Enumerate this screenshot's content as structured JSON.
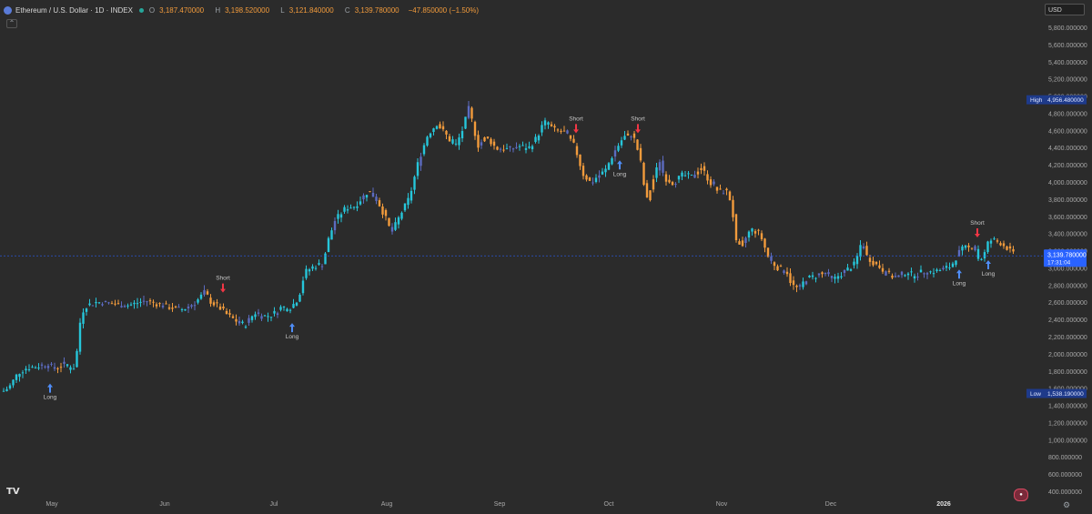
{
  "header": {
    "title": "Ethereum / U.S. Dollar · 1D · INDEX",
    "ohlc": [
      {
        "key": "O",
        "value": "3,187.470000"
      },
      {
        "key": "H",
        "value": "3,198.520000"
      },
      {
        "key": "L",
        "value": "3,121.840000"
      },
      {
        "key": "C",
        "value": "3,139.780000"
      }
    ],
    "change": "−47.850000 (−1.50%)"
  },
  "toolbar": {
    "currency": "USD",
    "collapse_icon": "chevron-up-icon",
    "settings_icon": "gear-icon",
    "logo": "TV"
  },
  "price_axis": {
    "ticks": [
      "5,800.000000",
      "5,600.000000",
      "5,400.000000",
      "5,200.000000",
      "5,000.000000",
      "4,800.000000",
      "4,600.000000",
      "4,400.000000",
      "4,200.000000",
      "4,000.000000",
      "3,800.000000",
      "3,600.000000",
      "3,400.000000",
      "3,200.000000",
      "3,000.000000",
      "2,800.000000",
      "2,600.000000",
      "2,400.000000",
      "2,200.000000",
      "2,000.000000",
      "1,800.000000",
      "1,600.000000",
      "1,400.000000",
      "1,200.000000",
      "1,000.000000",
      "800.000000",
      "600.000000",
      "400.000000"
    ],
    "high_label": "High",
    "high_value": "4,956.480000",
    "low_label": "Low",
    "low_value": "1,538.190000",
    "last_price": "3,139.780000",
    "countdown": "17:31:04"
  },
  "time_axis": [
    "May",
    "Jun",
    "Jul",
    "Aug",
    "Sep",
    "Oct",
    "Nov",
    "Dec",
    "2026"
  ],
  "colors": {
    "up": "#26c6da",
    "down": "#f29b3c",
    "neutral": "#5c6bc0",
    "background": "#2b2b2b",
    "accent": "#2962ff",
    "long": "#4f8df7",
    "short": "#f23645"
  },
  "chart_data": {
    "type": "candlestick",
    "title": "Ethereum / U.S. Dollar · 1D · INDEX",
    "ylim": [
      400,
      5800
    ],
    "yscale": "linear",
    "grid": false,
    "x_labels": [
      "May",
      "Jun",
      "Jul",
      "Aug",
      "Sep",
      "Oct",
      "Nov",
      "Dec",
      "2026"
    ],
    "high": 4956.48,
    "low": 1538.19,
    "last": 3139.78,
    "waypoints": [
      [
        0,
        1540
      ],
      [
        10,
        1610
      ],
      [
        20,
        1780
      ],
      [
        30,
        1840
      ],
      [
        40,
        1850
      ],
      [
        50,
        1880
      ],
      [
        60,
        1830
      ],
      [
        70,
        1880
      ],
      [
        78,
        1830
      ],
      [
        83,
        1850
      ],
      [
        87,
        2320
      ],
      [
        91,
        2500
      ],
      [
        95,
        2560
      ],
      [
        105,
        2600
      ],
      [
        120,
        2590
      ],
      [
        140,
        2560
      ],
      [
        160,
        2620
      ],
      [
        180,
        2560
      ],
      [
        200,
        2510
      ],
      [
        215,
        2600
      ],
      [
        225,
        2720
      ],
      [
        232,
        2600
      ],
      [
        240,
        2550
      ],
      [
        250,
        2450
      ],
      [
        260,
        2380
      ],
      [
        268,
        2320
      ],
      [
        280,
        2480
      ],
      [
        290,
        2430
      ],
      [
        300,
        2460
      ],
      [
        310,
        2550
      ],
      [
        318,
        2520
      ],
      [
        328,
        2650
      ],
      [
        335,
        2950
      ],
      [
        345,
        3020
      ],
      [
        355,
        3050
      ],
      [
        360,
        3300
      ],
      [
        368,
        3550
      ],
      [
        380,
        3700
      ],
      [
        390,
        3720
      ],
      [
        405,
        3900
      ],
      [
        415,
        3780
      ],
      [
        425,
        3550
      ],
      [
        430,
        3400
      ],
      [
        440,
        3620
      ],
      [
        450,
        3820
      ],
      [
        460,
        4250
      ],
      [
        470,
        4550
      ],
      [
        480,
        4680
      ],
      [
        490,
        4550
      ],
      [
        500,
        4400
      ],
      [
        508,
        4600
      ],
      [
        515,
        4850
      ],
      [
        520,
        4660
      ],
      [
        525,
        4420
      ],
      [
        535,
        4530
      ],
      [
        545,
        4390
      ],
      [
        560,
        4380
      ],
      [
        570,
        4420
      ],
      [
        580,
        4380
      ],
      [
        590,
        4520
      ],
      [
        598,
        4700
      ],
      [
        610,
        4600
      ],
      [
        620,
        4580
      ],
      [
        630,
        4440
      ],
      [
        635,
        4300
      ],
      [
        640,
        4100
      ],
      [
        650,
        3980
      ],
      [
        655,
        4050
      ],
      [
        665,
        4130
      ],
      [
        675,
        4350
      ],
      [
        685,
        4520
      ],
      [
        695,
        4560
      ],
      [
        700,
        4400
      ],
      [
        705,
        4180
      ],
      [
        710,
        3760
      ],
      [
        720,
        4100
      ],
      [
        725,
        4250
      ],
      [
        730,
        4050
      ],
      [
        740,
        3990
      ],
      [
        750,
        4080
      ],
      [
        760,
        4060
      ],
      [
        770,
        4180
      ],
      [
        780,
        4000
      ],
      [
        790,
        3880
      ],
      [
        800,
        3900
      ],
      [
        805,
        3650
      ],
      [
        810,
        3200
      ],
      [
        818,
        3320
      ],
      [
        825,
        3450
      ],
      [
        835,
        3400
      ],
      [
        845,
        3100
      ],
      [
        855,
        3000
      ],
      [
        865,
        2950
      ],
      [
        870,
        2800
      ],
      [
        878,
        2750
      ],
      [
        885,
        2870
      ],
      [
        895,
        2900
      ],
      [
        905,
        2950
      ],
      [
        915,
        2850
      ],
      [
        920,
        2900
      ],
      [
        930,
        2970
      ],
      [
        940,
        3050
      ],
      [
        947,
        3320
      ],
      [
        952,
        3140
      ],
      [
        960,
        3060
      ],
      [
        968,
        3000
      ],
      [
        975,
        2930
      ],
      [
        985,
        2880
      ],
      [
        995,
        2950
      ],
      [
        1005,
        2910
      ],
      [
        1015,
        2960
      ],
      [
        1025,
        2950
      ],
      [
        1035,
        2980
      ],
      [
        1045,
        3020
      ],
      [
        1055,
        3200
      ],
      [
        1060,
        3230
      ],
      [
        1070,
        3270
      ],
      [
        1075,
        3110
      ],
      [
        1080,
        3100
      ],
      [
        1085,
        3280
      ],
      [
        1090,
        3330
      ],
      [
        1100,
        3290
      ],
      [
        1108,
        3220
      ],
      [
        1115,
        3140
      ]
    ]
  },
  "annotations": [
    {
      "type": "long",
      "label": "Long",
      "date_index": 55
    },
    {
      "type": "short",
      "label": "Short",
      "date_index": 245
    },
    {
      "type": "long",
      "label": "Long",
      "date_index": 321
    },
    {
      "type": "short",
      "label": "Short",
      "date_index": 633
    },
    {
      "type": "long",
      "label": "Long",
      "date_index": 681
    },
    {
      "type": "short",
      "label": "Short",
      "date_index": 701
    },
    {
      "type": "long",
      "label": "Long",
      "date_index": 1054
    },
    {
      "type": "short",
      "label": "Short",
      "date_index": 1074
    },
    {
      "type": "long",
      "label": "Long",
      "date_index": 1086
    }
  ]
}
